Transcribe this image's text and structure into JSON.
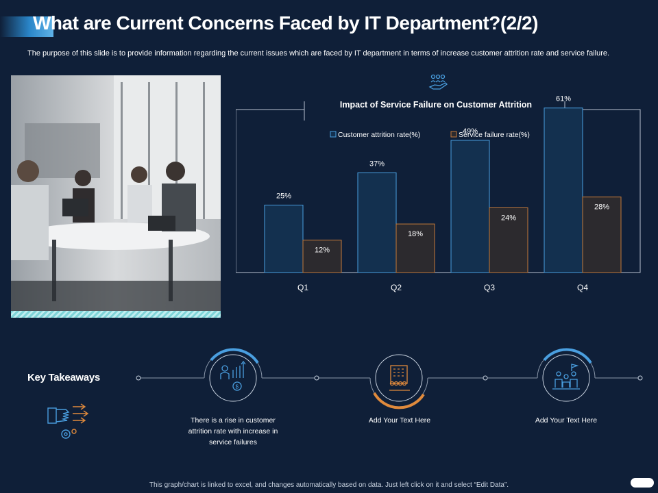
{
  "header": {
    "title": "What are Current Concerns Faced by IT Department?(2/2)",
    "subtitle": "The purpose of this slide is to provide information regarding the current issues which are faced by IT department in terms of increase customer attrition rate and service failure."
  },
  "colors": {
    "background": "#0f1f38",
    "attrition_fill": "#13304f",
    "attrition_stroke": "#4a9fe0",
    "failure_fill": "#2c2a2e",
    "failure_stroke": "#c47a3a",
    "accent_blue": "#4a9fe0",
    "accent_orange": "#e08a3c"
  },
  "chart_data": {
    "type": "bar",
    "title": "Impact of Service Failure on Customer Attrition",
    "categories": [
      "Q1",
      "Q2",
      "Q3",
      "Q4"
    ],
    "series": [
      {
        "name": "Customer attrition rate(%)",
        "values": [
          25,
          37,
          49,
          61
        ],
        "labels": [
          "25%",
          "37%",
          "49%",
          "61%"
        ]
      },
      {
        "name": "Service failure rate(%)",
        "values": [
          12,
          18,
          24,
          28
        ],
        "labels": [
          "12%",
          "18%",
          "24%",
          "28%"
        ]
      }
    ],
    "ylim": [
      0,
      70
    ],
    "legend_position": "top",
    "grid": false,
    "icon": "people-in-hand-icon"
  },
  "takeaways": {
    "heading": "Key Takeaways",
    "heading_icon": "hand-gear-arrows-icon",
    "items": [
      {
        "icon": "money-growth-icon",
        "text": "There is a rise in customer attrition rate with increase in service failures"
      },
      {
        "icon": "building-people-icon",
        "text": "Add Your Text Here"
      },
      {
        "icon": "team-flag-icon",
        "text": "Add Your Text Here"
      }
    ]
  },
  "footer": {
    "note": "This graph/chart is linked to excel, and changes automatically based on data. Just left click on it and select “Edit Data”."
  }
}
